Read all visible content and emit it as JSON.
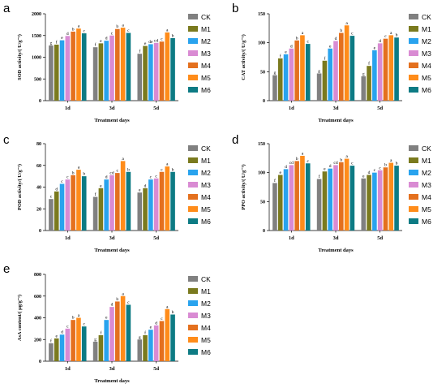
{
  "series_names": [
    "CK",
    "M1",
    "M2",
    "M3",
    "M4",
    "M5",
    "M6"
  ],
  "colors": {
    "CK": "#808080",
    "M1": "#7a7a1e",
    "M2": "#29a3ee",
    "M3": "#d98bd3",
    "M4": "#e4701e",
    "M5": "#ff8c1a",
    "M6": "#0d7b84"
  },
  "chart_data": [
    {
      "panel": "a",
      "type": "bar",
      "categories": [
        "1d",
        "3d",
        "5d"
      ],
      "xlabel": "Treatment days",
      "ylabel": "SOD activity/( U/g⁻¹)",
      "ylim": [
        0,
        2000
      ],
      "yticks": [
        0,
        500,
        1000,
        1500,
        2000
      ],
      "series": [
        {
          "name": "CK",
          "values": [
            1270,
            1230,
            1080
          ],
          "letters": [
            "g",
            "f",
            "f"
          ]
        },
        {
          "name": "M1",
          "values": [
            1290,
            1320,
            1260
          ],
          "letters": [
            "f",
            "e",
            "e"
          ]
        },
        {
          "name": "M2",
          "values": [
            1390,
            1380,
            1300
          ],
          "letters": [
            "e",
            "d",
            "de"
          ]
        },
        {
          "name": "M3",
          "values": [
            1490,
            1500,
            1330
          ],
          "letters": [
            "d",
            "c",
            "cd"
          ]
        },
        {
          "name": "M4",
          "values": [
            1590,
            1650,
            1360
          ],
          "letters": [
            "b",
            "b",
            "c"
          ]
        },
        {
          "name": "M5",
          "values": [
            1660,
            1680,
            1570
          ],
          "letters": [
            "a",
            "a",
            "a"
          ]
        },
        {
          "name": "M6",
          "values": [
            1550,
            1560,
            1440
          ],
          "letters": [
            "c",
            "c",
            "b"
          ]
        }
      ]
    },
    {
      "panel": "b",
      "type": "bar",
      "categories": [
        "1d",
        "3d",
        "5d"
      ],
      "xlabel": "Treatment days",
      "ylabel": "CAT activity/( U/g⁻¹)",
      "ylim": [
        0,
        150
      ],
      "yticks": [
        0,
        50,
        100,
        150
      ],
      "series": [
        {
          "name": "CK",
          "values": [
            44,
            47,
            42
          ],
          "letters": [
            "g",
            "g",
            "g"
          ]
        },
        {
          "name": "M1",
          "values": [
            73,
            69,
            60
          ],
          "letters": [
            "f",
            "f",
            "f"
          ]
        },
        {
          "name": "M2",
          "values": [
            80,
            90,
            87
          ],
          "letters": [
            "e",
            "e",
            "e"
          ]
        },
        {
          "name": "M3",
          "values": [
            90,
            103,
            99
          ],
          "letters": [
            "d",
            "d",
            "d"
          ]
        },
        {
          "name": "M4",
          "values": [
            104,
            117,
            107
          ],
          "letters": [
            "b",
            "b",
            "c"
          ]
        },
        {
          "name": "M5",
          "values": [
            113,
            130,
            113
          ],
          "letters": [
            "a",
            "a",
            "a"
          ]
        },
        {
          "name": "M6",
          "values": [
            98,
            112,
            109
          ],
          "letters": [
            "c",
            "c",
            "b"
          ]
        }
      ]
    },
    {
      "panel": "c",
      "type": "bar",
      "categories": [
        "1d",
        "3d",
        "5d"
      ],
      "xlabel": "Treatment days",
      "ylabel": "POD activity/( U/g⁻¹)",
      "ylim": [
        0,
        80
      ],
      "yticks": [
        0,
        20,
        40,
        60,
        80
      ],
      "series": [
        {
          "name": "CK",
          "values": [
            29,
            31,
            35
          ],
          "letters": [
            "c",
            "f",
            "e"
          ]
        },
        {
          "name": "M1",
          "values": [
            36,
            39,
            39
          ],
          "letters": [
            "d",
            "e",
            "d"
          ]
        },
        {
          "name": "M2",
          "values": [
            43,
            47,
            47
          ],
          "letters": [
            "c",
            "d",
            "c"
          ]
        },
        {
          "name": "M3",
          "values": [
            47,
            51,
            48
          ],
          "letters": [
            "c",
            "cd",
            "c"
          ]
        },
        {
          "name": "M4",
          "values": [
            51,
            53,
            54
          ],
          "letters": [
            "b",
            "c",
            "c"
          ]
        },
        {
          "name": "M5",
          "values": [
            56,
            64,
            59
          ],
          "letters": [
            "a",
            "a",
            "a"
          ]
        },
        {
          "name": "M6",
          "values": [
            50,
            54,
            54
          ],
          "letters": [
            "b",
            "b",
            "b"
          ]
        }
      ]
    },
    {
      "panel": "d",
      "type": "bar",
      "categories": [
        "1d",
        "3d",
        "5d"
      ],
      "xlabel": "Treatment days",
      "ylabel": "PPO activity/( U/g⁻¹)",
      "ylim": [
        0,
        150
      ],
      "yticks": [
        0,
        50,
        100,
        150
      ],
      "series": [
        {
          "name": "CK",
          "values": [
            82,
            89,
            90
          ],
          "letters": [
            "f",
            "f",
            "e"
          ]
        },
        {
          "name": "M1",
          "values": [
            96,
            102,
            96
          ],
          "letters": [
            "e",
            "e",
            "d"
          ]
        },
        {
          "name": "M2",
          "values": [
            106,
            107,
            100
          ],
          "letters": [
            "d",
            "d",
            "c"
          ]
        },
        {
          "name": "M3",
          "values": [
            113,
            113,
            104
          ],
          "letters": [
            "cd",
            "cd",
            "c"
          ]
        },
        {
          "name": "M4",
          "values": [
            120,
            118,
            109
          ],
          "letters": [
            "b",
            "b",
            "b"
          ]
        },
        {
          "name": "M5",
          "values": [
            129,
            124,
            117
          ],
          "letters": [
            "a",
            "a",
            "a"
          ]
        },
        {
          "name": "M6",
          "values": [
            116,
            112,
            112
          ],
          "letters": [
            "c",
            "c",
            "b"
          ]
        }
      ]
    },
    {
      "panel": "e",
      "type": "bar",
      "categories": [
        "1d",
        "3d",
        "5d"
      ],
      "xlabel": "Treatment days",
      "ylabel": "AsA content/( µg/g⁻¹)",
      "ylim": [
        0,
        800
      ],
      "yticks": [
        0,
        200,
        400,
        600,
        800
      ],
      "series": [
        {
          "name": "CK",
          "values": [
            165,
            180,
            200
          ],
          "letters": [
            "f",
            "g",
            "g"
          ]
        },
        {
          "name": "M1",
          "values": [
            210,
            240,
            240
          ],
          "letters": [
            "e",
            "f",
            "f"
          ]
        },
        {
          "name": "M2",
          "values": [
            245,
            380,
            290
          ],
          "letters": [
            "d",
            "e",
            "e"
          ]
        },
        {
          "name": "M3",
          "values": [
            300,
            500,
            330
          ],
          "letters": [
            "c",
            "d",
            "d"
          ]
        },
        {
          "name": "M4",
          "values": [
            380,
            550,
            370
          ],
          "letters": [
            "b",
            "b",
            "c"
          ]
        },
        {
          "name": "M5",
          "values": [
            400,
            600,
            480
          ],
          "letters": [
            "a",
            "a",
            "a"
          ]
        },
        {
          "name": "M6",
          "values": [
            320,
            520,
            430
          ],
          "letters": [
            "c",
            "c",
            "b"
          ]
        }
      ]
    }
  ]
}
